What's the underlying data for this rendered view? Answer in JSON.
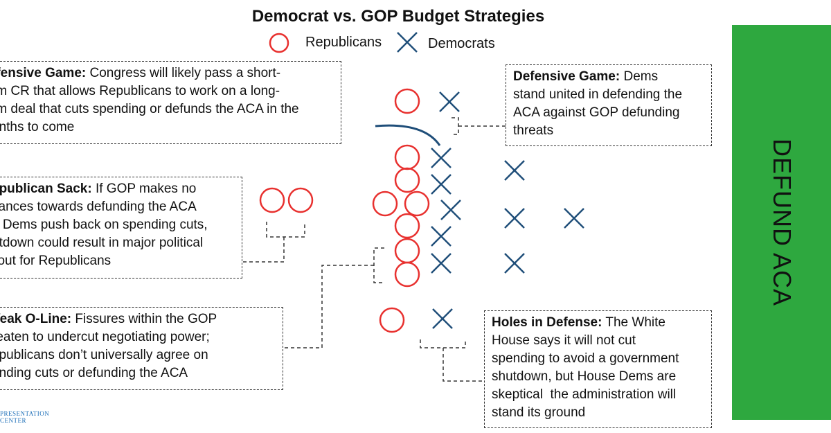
{
  "title": "Democrat vs. GOP Budget Strategies",
  "legend": {
    "republicans": "Republicans",
    "democrats": "Democrats",
    "republican_color": "#e8312f",
    "democrat_color": "#1f4e79"
  },
  "callouts": {
    "offensive": {
      "head": "ffensive Game:",
      "body": " Congress will likely pass a short-rm CR that allows Republicans to work on a long-rm deal that cuts spending or defunds the ACA in the onths to come",
      "lines": [
        "ffensive Game: Congress will likely pass a short-",
        "rm CR that allows Republicans to work on a long-",
        "rm deal that cuts spending or defunds the ACA in the",
        "onths to come"
      ]
    },
    "sack": {
      "head": "epublican Sack:",
      "lines": [
        "epublican Sack: If GOP makes no",
        "vances towards defunding the ACA",
        "d Dems push back on spending cuts,",
        "utdown could result in major political",
        "llout for Republicans"
      ]
    },
    "oline": {
      "head": "Veak O-Line:",
      "lines": [
        "Veak O-Line: Fissures within the GOP",
        "reaten to undercut negotiating power;",
        "epublicans don’t universally agree on",
        "ending cuts or defunding the ACA"
      ]
    },
    "defensive": {
      "head": "Defensive Game:",
      "lines": [
        "Defensive Game: Dems",
        "stand united in defending the",
        "ACA against GOP defunding",
        "threats"
      ]
    },
    "holes": {
      "head": "Holes in Defense:",
      "lines": [
        "Holes in Defense: The White",
        "House says it will not cut",
        "spending to avoid a government",
        "shutdown, but House Dems are",
        "skeptical  the administration will",
        "stand its ground"
      ]
    }
  },
  "sidebar": {
    "label": "DEFUND ACA",
    "color": "#2ea83f"
  },
  "logo": {
    "line1": "PRESENTATION",
    "line2": "CENTER"
  }
}
